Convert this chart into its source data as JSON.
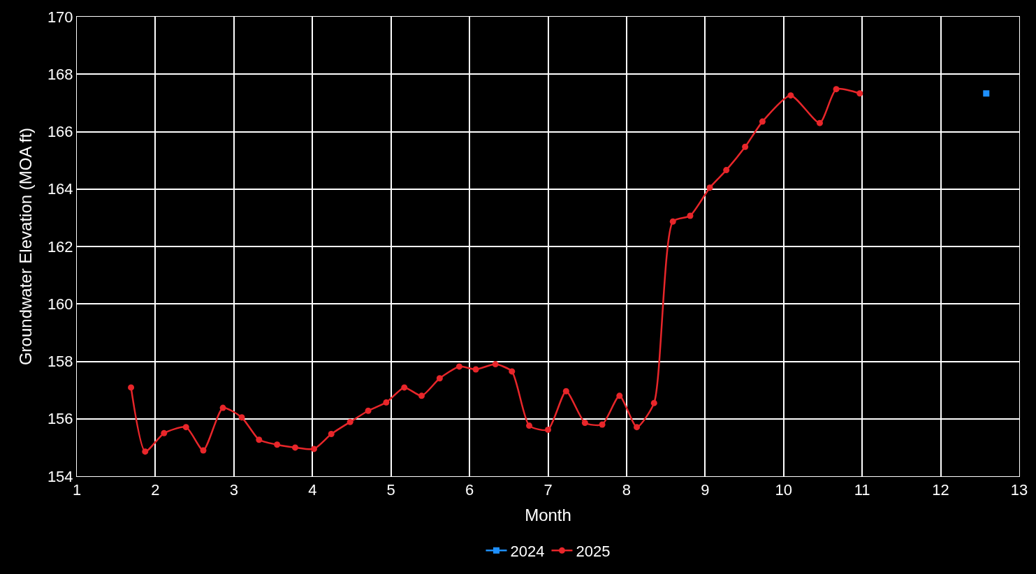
{
  "chart_data": {
    "type": "line",
    "xlabel": "Month",
    "ylabel": "Groundwater Elevation (MOA ft)",
    "xlim": [
      1,
      13
    ],
    "xticks": [
      1,
      2,
      3,
      4,
      5,
      6,
      7,
      8,
      9,
      10,
      11,
      12,
      13
    ],
    "ylim": [
      154,
      170
    ],
    "yticks": [
      154,
      156,
      158,
      160,
      162,
      164,
      166,
      168,
      170
    ],
    "grid": true,
    "legend": "bottom",
    "line_style": "solid",
    "series": [
      {
        "name": "2024",
        "color": "#1e90ff",
        "marker": "square",
        "x": [
          12.58
        ],
        "values": [
          167.33
        ]
      },
      {
        "name": "2025",
        "color": "#e8262a",
        "marker": "circle",
        "x": [
          1.69,
          1.87,
          2.11,
          2.39,
          2.61,
          2.86,
          3.1,
          3.32,
          3.55,
          3.78,
          4.02,
          4.24,
          4.48,
          4.71,
          4.94,
          5.17,
          5.39,
          5.62,
          5.87,
          6.08,
          6.33,
          6.54,
          6.76,
          7.0,
          7.23,
          7.47,
          7.69,
          7.91,
          8.13,
          8.35,
          8.59,
          8.81,
          9.06,
          9.27,
          9.51,
          9.73,
          10.09,
          10.46,
          10.67,
          10.97
        ],
        "values": [
          157.09,
          154.86,
          155.5,
          155.71,
          154.9,
          156.38,
          156.05,
          155.27,
          155.1,
          155.0,
          154.95,
          155.47,
          155.89,
          156.28,
          156.57,
          157.09,
          156.8,
          157.41,
          157.82,
          157.72,
          157.9,
          157.65,
          155.76,
          155.62,
          156.96,
          155.86,
          155.8,
          156.8,
          155.71,
          156.55,
          162.87,
          163.07,
          164.05,
          164.66,
          165.47,
          166.35,
          167.26,
          166.3,
          167.48,
          167.33
        ]
      }
    ]
  }
}
